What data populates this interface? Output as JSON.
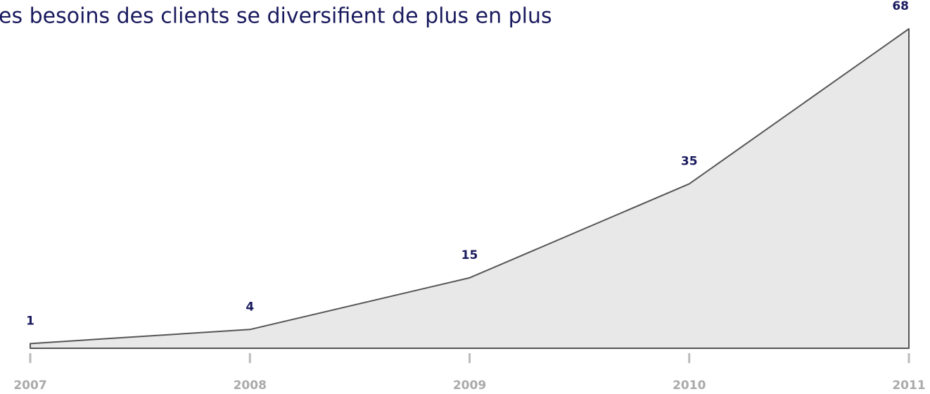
{
  "chart_data": {
    "type": "area",
    "title": "es besoins des clients se diversifient de plus en plus",
    "categories": [
      "2007",
      "2008",
      "2009",
      "2010",
      "2011"
    ],
    "values": [
      1,
      4,
      15,
      35,
      68
    ],
    "color": "#e8e8e8",
    "ylim": [
      0,
      68
    ]
  }
}
